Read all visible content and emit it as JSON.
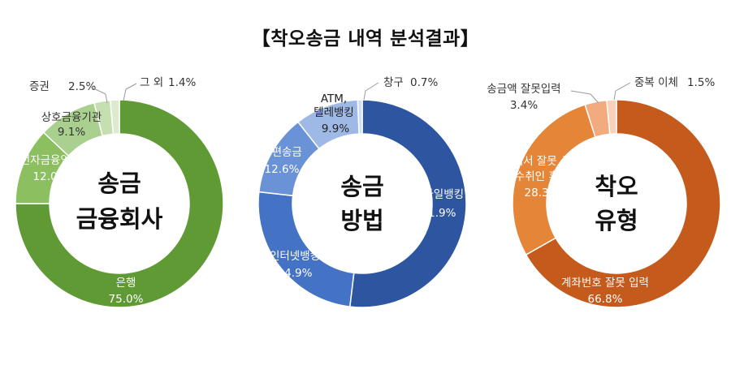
{
  "title": "【착오송금 내역 분석결과】",
  "chart_data": [
    {
      "type": "pie",
      "title": "송금 금융회사",
      "center_lines": [
        "송금",
        "금융회사"
      ],
      "categories": [
        "은행",
        "전자금융업자",
        "상호금융기관",
        "증권",
        "그 외"
      ],
      "values": [
        75.0,
        12.0,
        9.1,
        2.5,
        1.4
      ],
      "value_labels": [
        "75.0%",
        "12.0%",
        "9.1%",
        "2.5%",
        "1.4%"
      ],
      "colors": [
        "#5f9a35",
        "#8cbf5f",
        "#a9d08e",
        "#c6dfb1",
        "#dcebcf"
      ]
    },
    {
      "type": "pie",
      "title": "송금 방법",
      "center_lines": [
        "송금",
        "방법"
      ],
      "categories": [
        "모바일뱅킹",
        "인터넷뱅킹",
        "간편송금",
        "ATM, 텔레뱅킹",
        "창구"
      ],
      "values": [
        51.9,
        24.9,
        12.6,
        9.9,
        0.7
      ],
      "value_labels": [
        "51.9%",
        "24.9%",
        "12.6%",
        "9.9%",
        "0.7%"
      ],
      "colors": [
        "#2e55a0",
        "#4472c4",
        "#6a92d6",
        "#9fb9e6",
        "#cfdcf2"
      ]
    },
    {
      "type": "pie",
      "title": "착오 유형",
      "center_lines": [
        "착오",
        "유형"
      ],
      "categories": [
        "계좌번호 잘못 입력",
        "목록에서 잘못 선택등 수취인 혼동",
        "송금액 잘못입력",
        "중복 이체"
      ],
      "values": [
        66.8,
        28.3,
        3.4,
        1.5
      ],
      "value_labels": [
        "66.8%",
        "28.3%",
        "3.4%",
        "1.5%"
      ],
      "colors": [
        "#c55a1d",
        "#e58537",
        "#f2ab7e",
        "#f8d2b8"
      ]
    }
  ]
}
